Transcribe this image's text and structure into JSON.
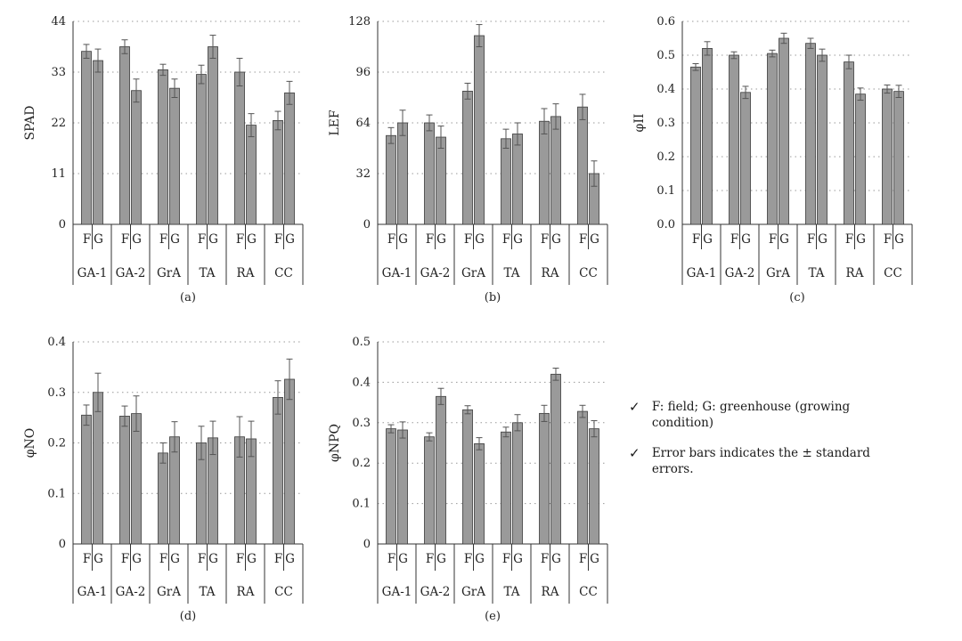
{
  "chart_data": [
    {
      "type": "bar",
      "panel_label": "(a)",
      "ylabel": "SPAD",
      "ylim": [
        0,
        44
      ],
      "yticks": [
        "0",
        "11",
        "22",
        "33",
        "44"
      ],
      "ytick_values": [
        0,
        11,
        22,
        33,
        44
      ],
      "categories": [
        "GA-1",
        "GA-2",
        "GrA",
        "TA",
        "RA",
        "CC"
      ],
      "series_labels": [
        "F",
        "G"
      ],
      "series": [
        {
          "name": "F",
          "values": [
            37.5,
            38.5,
            33.5,
            32.5,
            33,
            22.5
          ],
          "errors": [
            1.5,
            1.5,
            1.2,
            2.0,
            3.0,
            2.0
          ]
        },
        {
          "name": "G",
          "values": [
            35.5,
            29,
            29.5,
            38.5,
            21.5,
            28.5
          ],
          "errors": [
            2.5,
            2.5,
            2.0,
            2.5,
            2.5,
            2.5
          ]
        }
      ],
      "grid": true
    },
    {
      "type": "bar",
      "panel_label": "(b)",
      "ylabel": "LEF",
      "ylim": [
        0,
        128
      ],
      "yticks": [
        "0",
        "32",
        "64",
        "96",
        "128"
      ],
      "ytick_values": [
        0,
        32,
        64,
        96,
        128
      ],
      "categories": [
        "GA-1",
        "GA-2",
        "GrA",
        "TA",
        "RA",
        "CC"
      ],
      "series_labels": [
        "F",
        "G"
      ],
      "series": [
        {
          "name": "F",
          "values": [
            56,
            64,
            84,
            54,
            65,
            74
          ],
          "errors": [
            5,
            5,
            5,
            6,
            8,
            8
          ]
        },
        {
          "name": "G",
          "values": [
            64,
            55,
            119,
            57,
            68,
            32
          ],
          "errors": [
            8,
            7,
            7,
            7,
            8,
            8
          ]
        }
      ],
      "grid": true
    },
    {
      "type": "bar",
      "panel_label": "(c)",
      "ylabel": "φII",
      "ylim": [
        0,
        0.6
      ],
      "yticks": [
        "0.0",
        "0.1",
        "0.2",
        "0.3",
        "0.4",
        "0.5",
        "0.6"
      ],
      "ytick_values": [
        0,
        0.1,
        0.2,
        0.3,
        0.4,
        0.5,
        0.6
      ],
      "categories": [
        "GA-1",
        "GA-2",
        "GrA",
        "TA",
        "RA",
        "CC"
      ],
      "series_labels": [
        "F",
        "G"
      ],
      "series": [
        {
          "name": "F",
          "values": [
            0.465,
            0.5,
            0.505,
            0.535,
            0.48,
            0.4
          ],
          "errors": [
            0.01,
            0.01,
            0.01,
            0.015,
            0.02,
            0.012
          ]
        },
        {
          "name": "G",
          "values": [
            0.52,
            0.39,
            0.55,
            0.5,
            0.385,
            0.393
          ],
          "errors": [
            0.02,
            0.018,
            0.015,
            0.018,
            0.018,
            0.018
          ]
        }
      ],
      "grid": true
    },
    {
      "type": "bar",
      "panel_label": "(d)",
      "ylabel": "φNO",
      "ylim": [
        0,
        0.4
      ],
      "yticks": [
        "0",
        "0.1",
        "0.2",
        "0.3",
        "0.4"
      ],
      "ytick_values": [
        0,
        0.1,
        0.2,
        0.3,
        0.4
      ],
      "categories": [
        "GA-1",
        "GA-2",
        "GrA",
        "TA",
        "RA",
        "CC"
      ],
      "series_labels": [
        "F",
        "G"
      ],
      "series": [
        {
          "name": "F",
          "values": [
            0.255,
            0.253,
            0.18,
            0.2,
            0.212,
            0.29
          ],
          "errors": [
            0.02,
            0.02,
            0.02,
            0.033,
            0.04,
            0.033
          ]
        },
        {
          "name": "G",
          "values": [
            0.3,
            0.258,
            0.212,
            0.21,
            0.208,
            0.326
          ],
          "errors": [
            0.038,
            0.035,
            0.03,
            0.033,
            0.035,
            0.04
          ]
        }
      ],
      "grid": true
    },
    {
      "type": "bar",
      "panel_label": "(e)",
      "ylabel": "φNPQ",
      "ylim": [
        0,
        0.5
      ],
      "yticks": [
        "0",
        "0.1",
        "0.2",
        "0.3",
        "0.4",
        "0.5"
      ],
      "ytick_values": [
        0,
        0.1,
        0.2,
        0.3,
        0.4,
        0.5
      ],
      "categories": [
        "GA-1",
        "GA-2",
        "GrA",
        "TA",
        "RA",
        "CC"
      ],
      "series_labels": [
        "F",
        "G"
      ],
      "series": [
        {
          "name": "F",
          "values": [
            0.285,
            0.265,
            0.332,
            0.277,
            0.323,
            0.328
          ],
          "errors": [
            0.01,
            0.01,
            0.01,
            0.012,
            0.02,
            0.015
          ]
        },
        {
          "name": "G",
          "values": [
            0.282,
            0.365,
            0.248,
            0.3,
            0.42,
            0.285
          ],
          "errors": [
            0.02,
            0.02,
            0.015,
            0.02,
            0.015,
            0.02
          ]
        }
      ],
      "grid": true
    }
  ],
  "legend": {
    "items": [
      {
        "mark": "✓",
        "text": "F: field; G: greenhouse (growing condition)"
      },
      {
        "mark": "✓",
        "text": "Error bars indicates the ± standard errors."
      }
    ]
  }
}
